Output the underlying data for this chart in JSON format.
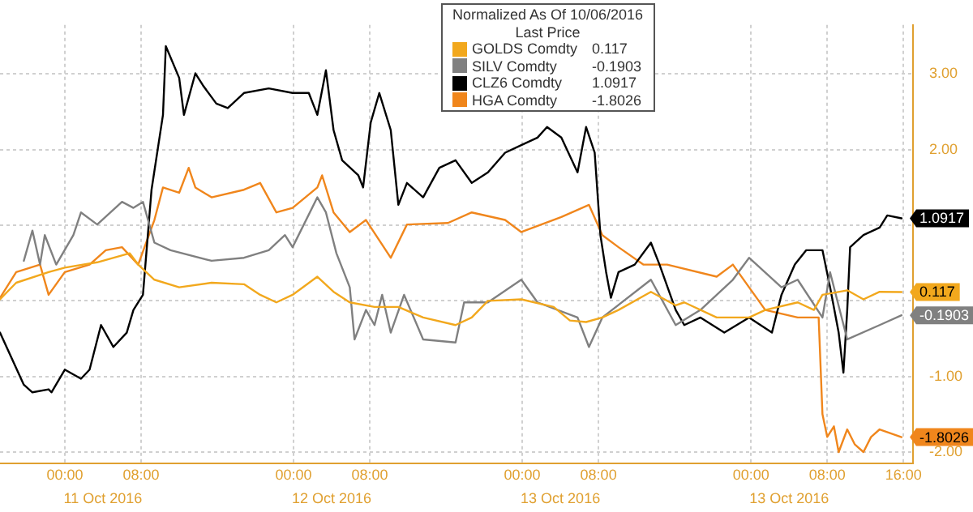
{
  "chart_data": {
    "type": "line",
    "legend_title": "Normalized As Of 10/06/2016\nLast Price",
    "legend": "top right",
    "grid": true,
    "marker": "none",
    "line_style": "solid",
    "xlim": [
      "2016-10-10T17:12",
      "2016-10-14T17:00"
    ],
    "xticks": [
      {
        "value": "2016-10-11T00:00",
        "label": "00:00"
      },
      {
        "value": "2016-10-11T08:00",
        "label": "08:00"
      },
      {
        "value": "2016-10-12T00:00",
        "label": "00:00"
      },
      {
        "value": "2016-10-12T08:00",
        "label": "08:00"
      },
      {
        "value": "2016-10-13T00:00",
        "label": "00:00"
      },
      {
        "value": "2016-10-13T08:00",
        "label": "08:00"
      },
      {
        "value": "2016-10-14T00:00",
        "label": "00:00"
      },
      {
        "value": "2016-10-14T08:00",
        "label": "08:00"
      },
      {
        "value": "2016-10-14T16:00",
        "label": "16:00"
      }
    ],
    "annotations": [
      "11 Oct 2016",
      "12 Oct 2016",
      "13 Oct 2016",
      "13 Oct 2016"
    ],
    "ylim": [
      -2.15,
      3.65
    ],
    "yticks": [
      {
        "value": -2,
        "label": "-2.00"
      },
      {
        "value": -1,
        "label": "-1.00"
      },
      {
        "value": 0,
        "label": null
      },
      {
        "value": 1,
        "label": null
      },
      {
        "value": 2,
        "label": "2.00"
      },
      {
        "value": 3,
        "label": "3.00"
      }
    ],
    "series": [
      {
        "name": "GOLDS Comdty",
        "color": "#f2a81d",
        "x": [
          "2016-10-10T17:12",
          "2016-10-10T18:54",
          "2016-10-10T22:18",
          "2016-10-11T00:00",
          "2016-10-11T03:24",
          "2016-10-11T06:48",
          "2016-10-11T07:42",
          "2016-10-11T09:24",
          "2016-10-11T12:00",
          "2016-10-11T15:24",
          "2016-10-11T18:48",
          "2016-10-11T20:30",
          "2016-10-11T22:12",
          "2016-10-11T23:54",
          "2016-10-12T02:30",
          "2016-10-12T04:12",
          "2016-10-12T05:54",
          "2016-10-12T08:30",
          "2016-10-12T11:00",
          "2016-10-12T13:36",
          "2016-10-12T17:00",
          "2016-10-12T18:42",
          "2016-10-12T20:24",
          "2016-10-12T23:54",
          "2016-10-13T03:18",
          "2016-10-13T05:00",
          "2016-10-13T06:42",
          "2016-10-13T08:24",
          "2016-10-13T10:06",
          "2016-10-13T13:30",
          "2016-10-13T16:06",
          "2016-10-13T17:00",
          "2016-10-13T20:24",
          "2016-10-13T23:48",
          "2016-10-14T01:30",
          "2016-10-14T04:54",
          "2016-10-14T06:36",
          "2016-10-14T07:30",
          "2016-10-14T10:06",
          "2016-10-14T11:48",
          "2016-10-14T13:30",
          "2016-10-14T15:48"
        ],
        "values": [
          0.02,
          0.24,
          0.38,
          0.44,
          0.51,
          0.63,
          0.48,
          0.28,
          0.18,
          0.24,
          0.22,
          0.08,
          -0.02,
          0.08,
          0.32,
          0.12,
          -0.02,
          -0.08,
          -0.08,
          -0.22,
          -0.32,
          -0.22,
          0,
          0.02,
          -0.08,
          -0.26,
          -0.28,
          -0.22,
          -0.12,
          0.12,
          -0.06,
          -0.02,
          -0.22,
          -0.22,
          -0.12,
          -0.02,
          -0.12,
          0.08,
          0.14,
          0.02,
          0.12,
          0.117
        ],
        "value_labels": [
          null,
          null,
          null,
          null,
          null,
          null,
          null,
          null,
          null,
          null,
          null,
          null,
          null,
          null,
          null,
          null,
          null,
          null,
          null,
          null,
          null,
          null,
          null,
          null,
          null,
          null,
          null,
          null,
          null,
          null,
          null,
          null,
          null,
          null,
          null,
          null,
          null,
          null,
          null,
          null,
          null,
          "0.117"
        ]
      },
      {
        "name": "SILV Comdty",
        "color": "#808080",
        "x": [
          "2016-10-10T19:42",
          "2016-10-10T20:36",
          "2016-10-10T21:24",
          "2016-10-10T21:54",
          "2016-10-10T23:06",
          "2016-10-11T00:54",
          "2016-10-11T01:42",
          "2016-10-11T03:24",
          "2016-10-11T06:00",
          "2016-10-11T07:12",
          "2016-10-11T08:12",
          "2016-10-11T09:24",
          "2016-10-11T11:06",
          "2016-10-11T15:24",
          "2016-10-11T18:48",
          "2016-10-11T21:24",
          "2016-10-11T23:06",
          "2016-10-11T23:54",
          "2016-10-12T02:30",
          "2016-10-12T03:24",
          "2016-10-12T04:30",
          "2016-10-12T05:54",
          "2016-10-12T06:24",
          "2016-10-12T07:36",
          "2016-10-12T08:30",
          "2016-10-12T09:18",
          "2016-10-12T10:12",
          "2016-10-12T11:36",
          "2016-10-12T13:36",
          "2016-10-12T17:00",
          "2016-10-12T17:54",
          "2016-10-12T20:24",
          "2016-10-12T23:54",
          "2016-10-13T01:36",
          "2016-10-13T05:48",
          "2016-10-13T07:00",
          "2016-10-13T08:24",
          "2016-10-13T13:30",
          "2016-10-13T16:06",
          "2016-10-13T18:42",
          "2016-10-13T22:06",
          "2016-10-13T23:48",
          "2016-10-14T03:12",
          "2016-10-14T04:54",
          "2016-10-14T07:30",
          "2016-10-14T08:18",
          "2016-10-14T10:06",
          "2016-10-14T13:30",
          "2016-10-14T15:48"
        ],
        "values": [
          0.53,
          0.93,
          0.48,
          0.87,
          0.48,
          0.87,
          1.17,
          1.01,
          1.31,
          1.23,
          1.31,
          0.77,
          0.67,
          0.53,
          0.57,
          0.67,
          0.87,
          0.71,
          1.37,
          1.17,
          0.63,
          0.18,
          -0.51,
          -0.12,
          -0.32,
          0.08,
          -0.42,
          0.08,
          -0.51,
          -0.55,
          -0.02,
          -0.02,
          0.28,
          -0.02,
          -0.22,
          -0.61,
          -0.22,
          0.28,
          -0.32,
          -0.12,
          0.28,
          0.57,
          0.18,
          0.28,
          -0.22,
          0.38,
          -0.51,
          -0.32,
          -0.1903
        ],
        "value_labels": [
          null,
          null,
          null,
          null,
          null,
          null,
          null,
          null,
          null,
          null,
          null,
          null,
          null,
          null,
          null,
          null,
          null,
          null,
          null,
          null,
          null,
          null,
          null,
          null,
          null,
          null,
          null,
          null,
          null,
          null,
          null,
          null,
          null,
          null,
          null,
          null,
          null,
          null,
          null,
          null,
          null,
          null,
          null,
          null,
          null,
          null,
          null,
          null,
          "-0.1903"
        ]
      },
      {
        "name": "CLZ6 Comdty",
        "color": "#000000",
        "x": [
          "2016-10-10T17:12",
          "2016-10-10T19:42",
          "2016-10-10T20:36",
          "2016-10-10T22:18",
          "2016-10-10T22:36",
          "2016-10-11T00:00",
          "2016-10-11T01:42",
          "2016-10-11T02:36",
          "2016-10-11T03:48",
          "2016-10-11T05:06",
          "2016-10-11T06:30",
          "2016-10-11T07:12",
          "2016-10-11T08:12",
          "2016-10-11T09:06",
          "2016-10-11T10:18",
          "2016-10-11T10:36",
          "2016-10-11T12:00",
          "2016-10-11T12:30",
          "2016-10-11T13:42",
          "2016-10-11T14:30",
          "2016-10-11T15:54",
          "2016-10-11T17:06",
          "2016-10-11T18:48",
          "2016-10-11T21:24",
          "2016-10-11T23:54",
          "2016-10-12T01:36",
          "2016-10-12T02:30",
          "2016-10-12T03:24",
          "2016-10-12T04:12",
          "2016-10-12T05:06",
          "2016-10-12T06:48",
          "2016-10-12T07:18",
          "2016-10-12T08:06",
          "2016-10-12T09:00",
          "2016-10-12T10:12",
          "2016-10-12T11:00",
          "2016-10-12T11:54",
          "2016-10-12T13:36",
          "2016-10-12T15:18",
          "2016-10-12T17:00",
          "2016-10-12T18:42",
          "2016-10-12T20:24",
          "2016-10-12T22:12",
          "2016-10-12T23:54",
          "2016-10-13T01:36",
          "2016-10-13T02:36",
          "2016-10-13T04:06",
          "2016-10-13T05:48",
          "2016-10-13T06:42",
          "2016-10-13T07:36",
          "2016-10-13T08:12",
          "2016-10-13T08:48",
          "2016-10-13T09:18",
          "2016-10-13T10:06",
          "2016-10-13T11:48",
          "2016-10-13T13:30",
          "2016-10-13T14:24",
          "2016-10-13T16:06",
          "2016-10-13T17:00",
          "2016-10-13T18:42",
          "2016-10-13T21:12",
          "2016-10-13T23:48",
          "2016-10-14T02:12",
          "2016-10-14T03:12",
          "2016-10-14T04:36",
          "2016-10-14T05:48",
          "2016-10-14T07:30",
          "2016-10-14T08:18",
          "2016-10-14T09:12",
          "2016-10-14T09:42",
          "2016-10-14T10:06",
          "2016-10-14T10:24",
          "2016-10-14T11:48",
          "2016-10-14T13:30",
          "2016-10-14T14:18",
          "2016-10-14T15:48"
        ],
        "values": [
          -0.42,
          -1.11,
          -1.21,
          -1.17,
          -1.21,
          -0.91,
          -1.03,
          -0.91,
          -0.32,
          -0.61,
          -0.42,
          -0.12,
          0.08,
          1.47,
          2.46,
          3.37,
          2.95,
          2.46,
          3.01,
          2.85,
          2.61,
          2.55,
          2.75,
          2.81,
          2.75,
          2.75,
          2.46,
          3.05,
          2.26,
          1.86,
          1.66,
          1.5,
          2.36,
          2.75,
          2.26,
          1.27,
          1.56,
          1.37,
          1.76,
          1.86,
          1.56,
          1.7,
          1.96,
          2.06,
          2.16,
          2.3,
          2.16,
          1.7,
          2.3,
          1.96,
          0.87,
          0.38,
          0.04,
          0.38,
          0.48,
          0.77,
          0.48,
          -0.12,
          -0.32,
          -0.22,
          -0.42,
          -0.22,
          -0.42,
          0.08,
          0.48,
          0.67,
          0.67,
          0.18,
          -0.42,
          -0.95,
          -0.12,
          0.71,
          0.87,
          0.97,
          1.13,
          1.0917
        ],
        "value_labels": [
          null,
          null,
          null,
          null,
          null,
          null,
          null,
          null,
          null,
          null,
          null,
          null,
          null,
          null,
          null,
          null,
          null,
          null,
          null,
          null,
          null,
          null,
          null,
          null,
          null,
          null,
          null,
          null,
          null,
          null,
          null,
          null,
          null,
          null,
          null,
          null,
          null,
          null,
          null,
          null,
          null,
          null,
          null,
          null,
          null,
          null,
          null,
          null,
          null,
          null,
          null,
          null,
          null,
          null,
          null,
          null,
          null,
          null,
          null,
          null,
          null,
          null,
          null,
          null,
          null,
          null,
          null,
          null,
          null,
          null,
          null,
          null,
          null,
          null,
          null,
          "1.0917"
        ]
      },
      {
        "name": "HGA Comdty",
        "color": "#f0861c",
        "x": [
          "2016-10-10T17:12",
          "2016-10-10T18:54",
          "2016-10-10T21:24",
          "2016-10-10T22:18",
          "2016-10-11T00:00",
          "2016-10-11T02:36",
          "2016-10-11T04:18",
          "2016-10-11T06:00",
          "2016-10-11T07:42",
          "2016-10-11T09:24",
          "2016-10-11T10:18",
          "2016-10-11T12:00",
          "2016-10-11T13:00",
          "2016-10-11T13:42",
          "2016-10-11T15:24",
          "2016-10-11T18:48",
          "2016-10-11T20:30",
          "2016-10-11T22:12",
          "2016-10-11T23:54",
          "2016-10-12T02:30",
          "2016-10-12T03:00",
          "2016-10-12T04:12",
          "2016-10-12T05:54",
          "2016-10-12T07:36",
          "2016-10-12T10:12",
          "2016-10-12T11:54",
          "2016-10-12T16:12",
          "2016-10-12T18:42",
          "2016-10-12T22:12",
          "2016-10-12T23:54",
          "2016-10-13T04:06",
          "2016-10-13T07:00",
          "2016-10-13T08:24",
          "2016-10-13T10:06",
          "2016-10-13T12:42",
          "2016-10-13T15:12",
          "2016-10-13T20:24",
          "2016-10-13T22:06",
          "2016-10-13T23:48",
          "2016-10-14T01:30",
          "2016-10-14T04:54",
          "2016-10-14T07:06",
          "2016-10-14T07:30",
          "2016-10-14T08:00",
          "2016-10-14T08:42",
          "2016-10-14T09:12",
          "2016-10-14T10:06",
          "2016-10-14T10:54",
          "2016-10-14T11:48",
          "2016-10-14T12:36",
          "2016-10-14T13:30",
          "2016-10-14T15:48"
        ],
        "values": [
          0.04,
          0.38,
          0.48,
          0.08,
          0.38,
          0.48,
          0.67,
          0.71,
          0.48,
          1.07,
          1.5,
          1.43,
          1.76,
          1.5,
          1.37,
          1.47,
          1.56,
          1.17,
          1.23,
          1.5,
          1.66,
          1.17,
          0.91,
          1.07,
          0.57,
          1.01,
          1.03,
          1.17,
          1.07,
          0.91,
          1.11,
          1.27,
          0.87,
          0.71,
          0.48,
          0.48,
          0.32,
          0.48,
          0.18,
          -0.12,
          -0.22,
          -0.22,
          -1.5,
          -1.8,
          -1.66,
          -2.0,
          -1.7,
          -1.9,
          -2.0,
          -1.8,
          -1.7,
          -1.8026
        ],
        "value_labels": [
          null,
          null,
          null,
          null,
          null,
          null,
          null,
          null,
          null,
          null,
          null,
          null,
          null,
          null,
          null,
          null,
          null,
          null,
          null,
          null,
          null,
          null,
          null,
          null,
          null,
          null,
          null,
          null,
          null,
          null,
          null,
          null,
          null,
          null,
          null,
          null,
          null,
          null,
          null,
          null,
          null,
          null,
          null,
          null,
          null,
          null,
          null,
          null,
          null,
          null,
          null,
          "-1.8026"
        ]
      }
    ]
  }
}
